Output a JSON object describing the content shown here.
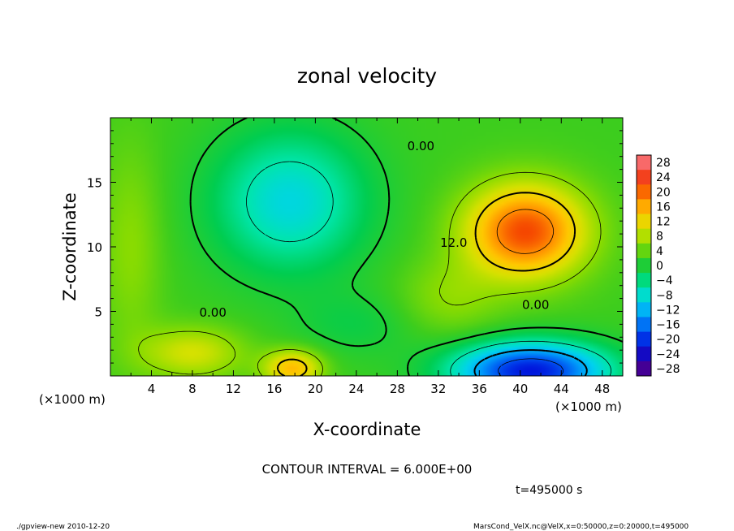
{
  "chart_data": {
    "type": "heatmap",
    "title": "zonal velocity",
    "xlabel": "X-coordinate",
    "ylabel": "Z-coordinate",
    "x_unit_note": "(×1000 m)",
    "y_unit_note": "(×1000 m)",
    "xlim": [
      0,
      50
    ],
    "ylim": [
      0,
      20
    ],
    "x_ticks": [
      4,
      8,
      12,
      16,
      20,
      24,
      28,
      32,
      36,
      40,
      44,
      48
    ],
    "y_ticks": [
      5,
      10,
      15
    ],
    "x_tick_labels": [
      "4",
      "8",
      "12",
      "16",
      "20",
      "24",
      "28",
      "32",
      "36",
      "40",
      "44",
      "48"
    ],
    "y_tick_labels": [
      "5",
      "10",
      "15"
    ],
    "colorbar": {
      "levels": [
        28,
        24,
        20,
        16,
        12,
        8,
        4,
        0,
        -4,
        -8,
        -12,
        -16,
        -20,
        -24,
        -28
      ],
      "labels": [
        "28",
        "24",
        "20",
        "16",
        "12",
        "8",
        "4",
        "0",
        "−4",
        "−8",
        "−12",
        "−16",
        "−20",
        "−24",
        "−28"
      ],
      "range": [
        -30,
        30
      ]
    },
    "contour_labels": [
      {
        "text": "0.00",
        "x": 30.3,
        "z": 17.5
      },
      {
        "text": "12.0",
        "x": 33.5,
        "z": 10.0
      },
      {
        "text": "0.00",
        "x": 41.5,
        "z": 5.2
      },
      {
        "text": "0.00",
        "x": 10.0,
        "z": 4.6
      }
    ],
    "features": [
      {
        "name": "jet maximum",
        "x": 40,
        "z": 10.2,
        "value": 20
      },
      {
        "name": "upper easterly region",
        "x": 17,
        "z": 13,
        "value": -10
      },
      {
        "name": "lower easterly region",
        "x": 41,
        "z": 0.8,
        "value": -22
      },
      {
        "name": "near-surface westerly",
        "x": 17.5,
        "z": 0.6,
        "value": 14
      }
    ]
  },
  "contour_interval": "CONTOUR INTERVAL = 6.000E+00",
  "time_label": "t=495000 s",
  "footer_left": "./gpview-new  2010-12-20",
  "footer_right": "MarsCond_VelX.nc@VelX,x=0:50000,z=0:20000,t=495000"
}
